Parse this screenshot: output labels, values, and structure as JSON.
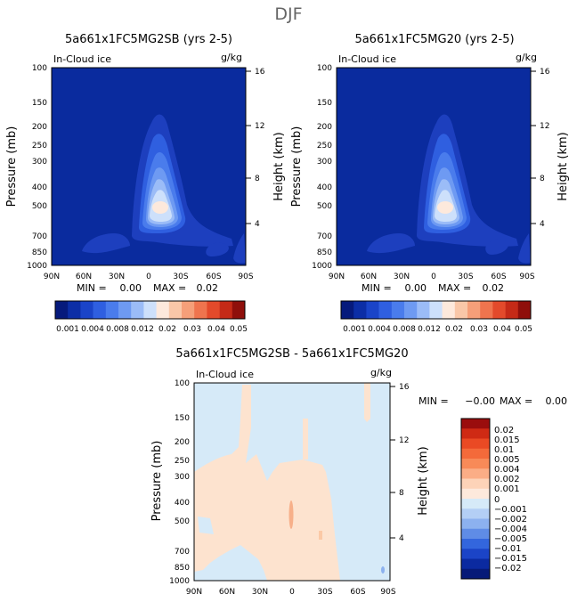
{
  "page_title": "DJF",
  "colors": {
    "background_fill": "#0a2b9e",
    "panel3_background": "#d6eaf8",
    "panel3_positive": "#fde3cf",
    "panel3_accent": "#f7b08a"
  },
  "chart_data": [
    {
      "type": "heatmap",
      "title": "5a661x1FC5MG2SB (yrs 2-5)",
      "variable_label": "In-Cloud ice",
      "units": "g/kg",
      "ylabel": "Pressure (mb)",
      "ylabel_right": "Height (km)",
      "x_ticks": [
        "90N",
        "60N",
        "30N",
        "0",
        "30S",
        "60S",
        "90S"
      ],
      "x_tick_values": [
        90,
        60,
        30,
        0,
        -30,
        -60,
        -90
      ],
      "y_ticks": [
        "100",
        "150",
        "200",
        "250",
        "300",
        "400",
        "500",
        "700",
        "850",
        "1000"
      ],
      "y_tick_values": [
        100,
        150,
        200,
        250,
        300,
        400,
        500,
        700,
        850,
        1000
      ],
      "y2_ticks": [
        "16",
        "12",
        "8",
        "4"
      ],
      "y2_tick_values": [
        16,
        12,
        8,
        4
      ],
      "stats": {
        "min_label": "MIN =",
        "min": "0.00",
        "max_label": "MAX =",
        "max": "0.02"
      },
      "colorbar_levels": [
        0.001,
        0.002,
        0.004,
        0.006,
        0.008,
        0.01,
        0.012,
        0.015,
        0.02,
        0.025,
        0.03,
        0.035,
        0.04,
        0.045,
        0.05
      ],
      "colorbar_labels": [
        "0.001",
        "0.004",
        "0.008",
        "0.012",
        "0.02",
        "0.03",
        "0.04",
        "0.05"
      ],
      "colorbar_colors": [
        "#061a7c",
        "#0c2ea6",
        "#1a44c8",
        "#2f5fe0",
        "#4a7cec",
        "#6e9af2",
        "#9bbcf7",
        "#cde0fb",
        "#fde9dc",
        "#f9c7a8",
        "#f59f79",
        "#ef744e",
        "#e34a2b",
        "#c52a17",
        "#8f0f0b"
      ]
    },
    {
      "type": "heatmap",
      "title": "5a661x1FC5MG20 (yrs 2-5)",
      "variable_label": "In-Cloud ice",
      "units": "g/kg",
      "ylabel": "Pressure (mb)",
      "ylabel_right": "Height (km)",
      "x_ticks": [
        "90N",
        "60N",
        "30N",
        "0",
        "30S",
        "60S",
        "90S"
      ],
      "x_tick_values": [
        90,
        60,
        30,
        0,
        -30,
        -60,
        -90
      ],
      "y_ticks": [
        "100",
        "150",
        "200",
        "250",
        "300",
        "400",
        "500",
        "700",
        "850",
        "1000"
      ],
      "y_tick_values": [
        100,
        150,
        200,
        250,
        300,
        400,
        500,
        700,
        850,
        1000
      ],
      "y2_ticks": [
        "16",
        "12",
        "8",
        "4"
      ],
      "y2_tick_values": [
        16,
        12,
        8,
        4
      ],
      "stats": {
        "min_label": "MIN =",
        "min": "0.00",
        "max_label": "MAX =",
        "max": "0.02"
      },
      "colorbar_levels": [
        0.001,
        0.002,
        0.004,
        0.006,
        0.008,
        0.01,
        0.012,
        0.015,
        0.02,
        0.025,
        0.03,
        0.035,
        0.04,
        0.045,
        0.05
      ],
      "colorbar_labels": [
        "0.001",
        "0.004",
        "0.008",
        "0.012",
        "0.02",
        "0.03",
        "0.04",
        "0.05"
      ],
      "colorbar_colors": [
        "#061a7c",
        "#0c2ea6",
        "#1a44c8",
        "#2f5fe0",
        "#4a7cec",
        "#6e9af2",
        "#9bbcf7",
        "#cde0fb",
        "#fde9dc",
        "#f9c7a8",
        "#f59f79",
        "#ef744e",
        "#e34a2b",
        "#c52a17",
        "#8f0f0b"
      ]
    },
    {
      "type": "heatmap",
      "title": "5a661x1FC5MG2SB - 5a661x1FC5MG20",
      "variable_label": "In-Cloud ice",
      "units": "g/kg",
      "ylabel": "Pressure (mb)",
      "ylabel_right": "Height (km)",
      "x_ticks": [
        "90N",
        "60N",
        "30N",
        "0",
        "30S",
        "60S",
        "90S"
      ],
      "x_tick_values": [
        90,
        60,
        30,
        0,
        -30,
        -60,
        -90
      ],
      "y_ticks": [
        "100",
        "150",
        "200",
        "250",
        "300",
        "400",
        "500",
        "700",
        "850",
        "1000"
      ],
      "y_tick_values": [
        100,
        150,
        200,
        250,
        300,
        400,
        500,
        700,
        850,
        1000
      ],
      "y2_ticks": [
        "16",
        "12",
        "8",
        "4"
      ],
      "y2_tick_values": [
        16,
        12,
        8,
        4
      ],
      "stats": {
        "min_label": "MIN =",
        "min": "−0.00",
        "max_label": "MAX =",
        "max": "0.00"
      },
      "colorbar_labels": [
        "0.02",
        "0.015",
        "0.01",
        "0.005",
        "0.004",
        "0.002",
        "0.001",
        "0",
        "−0.001",
        "−0.002",
        "−0.004",
        "−0.005",
        "−0.01",
        "−0.015",
        "−0.02"
      ],
      "colorbar_colors": [
        "#9a0d0d",
        "#cf2a14",
        "#ea4a24",
        "#f46a3a",
        "#f88a58",
        "#fbad86",
        "#fdd3b8",
        "#fde9dc",
        "#d6eaf8",
        "#b4cff5",
        "#8cb1ef",
        "#5f8ce6",
        "#3366dd",
        "#1b44c7",
        "#0b2aa0",
        "#061a78"
      ]
    }
  ]
}
